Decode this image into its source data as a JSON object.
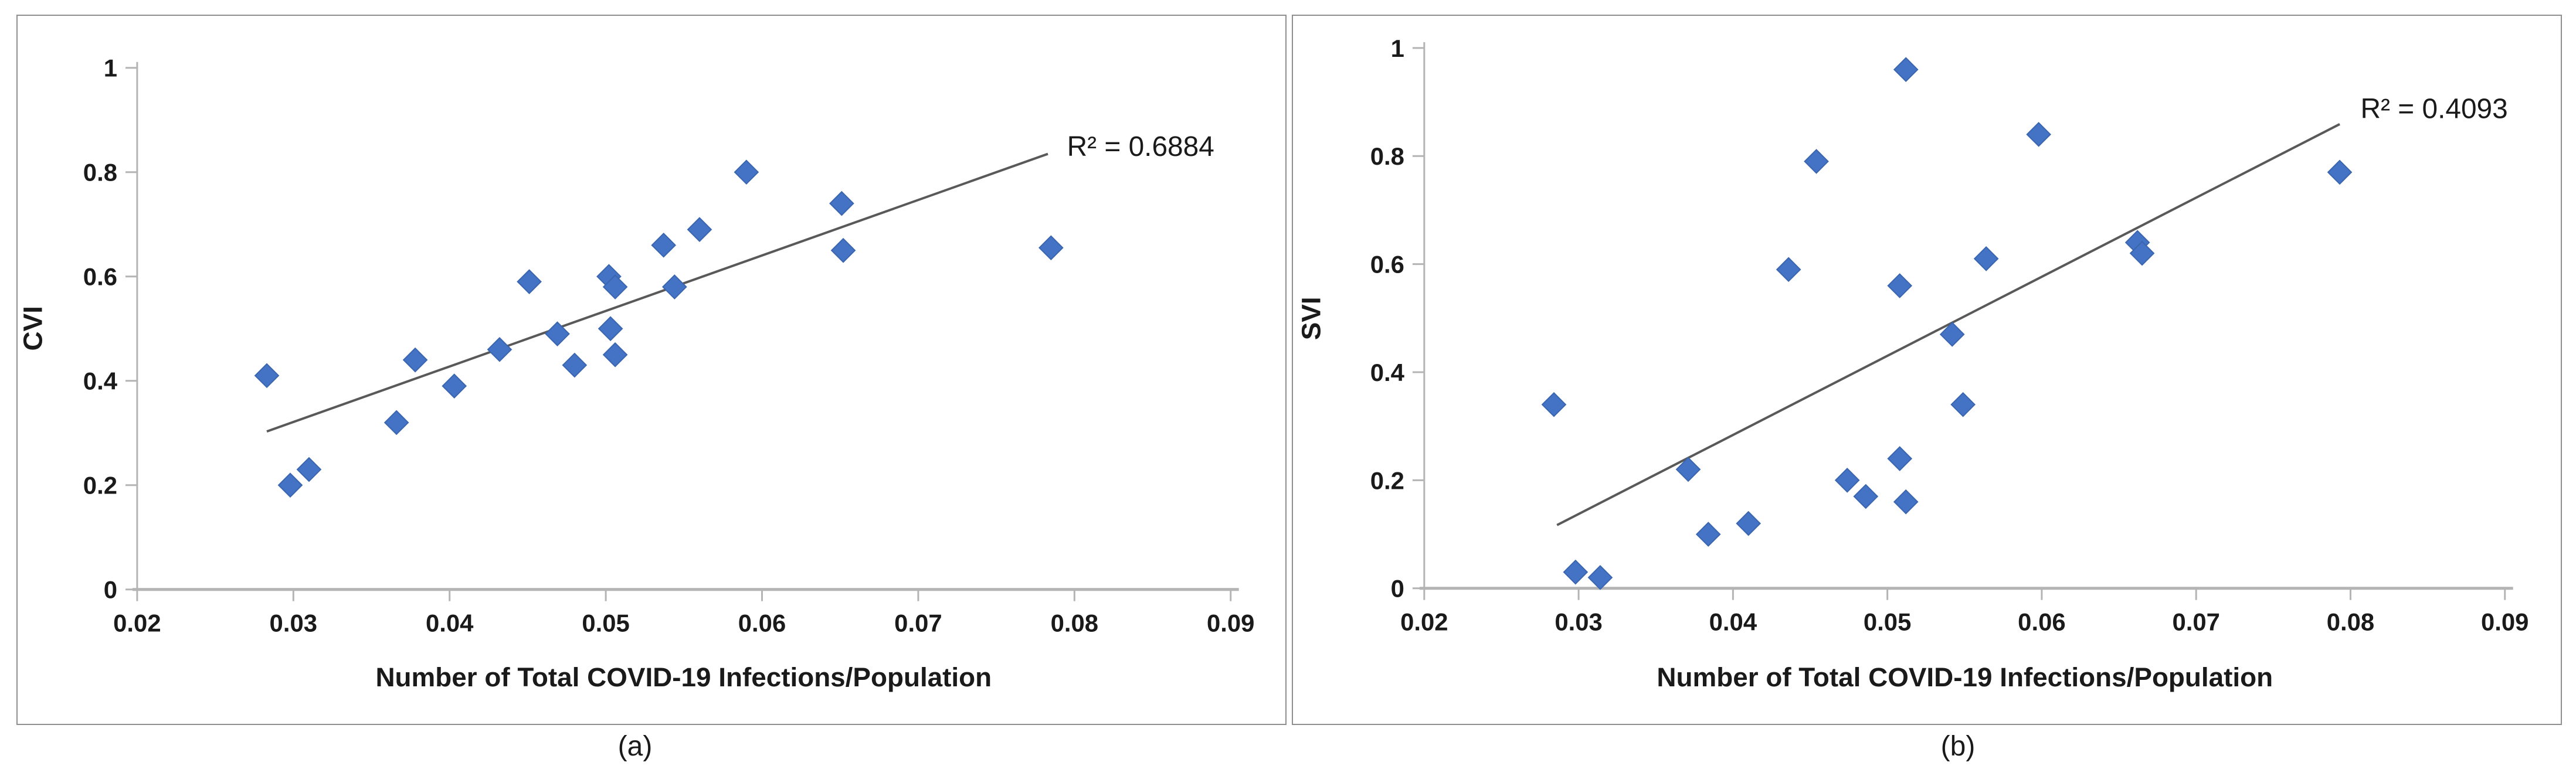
{
  "figure": {
    "captions": {
      "a": "(a)",
      "b": "(b)"
    }
  },
  "colors": {
    "marker": "#4472C4",
    "marker_edge": "#3a66b0",
    "trendline": "#595959",
    "axis": "#b4b4b4",
    "text": "#1a1a1a",
    "panel_border": "#8f8f8f"
  },
  "chart_data": [
    {
      "id": "a",
      "type": "scatter",
      "xlabel": "Number of Total COVID-19 Infections/Population",
      "ylabel": "CVI",
      "r2_label": "R² = 0.6884",
      "xlim": [
        0.02,
        0.09
      ],
      "ylim": [
        0,
        1
      ],
      "xticks": [
        0.02,
        0.03,
        0.04,
        0.05,
        0.06,
        0.07,
        0.08,
        0.09
      ],
      "xtick_labels": [
        "0.02",
        "0.03",
        "0.04",
        "0.05",
        "0.06",
        "0.07",
        "0.08",
        "0.09"
      ],
      "yticks": [
        0,
        0.2,
        0.4,
        0.6,
        0.8,
        1
      ],
      "ytick_labels": [
        "0",
        "0.2",
        "0.4",
        "0.6",
        "0.8",
        "1"
      ],
      "grid": false,
      "legend": "none",
      "marker": "diamond",
      "points": [
        [
          0.0283,
          0.41
        ],
        [
          0.0298,
          0.2
        ],
        [
          0.031,
          0.23
        ],
        [
          0.0366,
          0.32
        ],
        [
          0.0378,
          0.44
        ],
        [
          0.0403,
          0.39
        ],
        [
          0.0432,
          0.46
        ],
        [
          0.0451,
          0.59
        ],
        [
          0.0469,
          0.49
        ],
        [
          0.048,
          0.43
        ],
        [
          0.0502,
          0.6
        ],
        [
          0.0506,
          0.58
        ],
        [
          0.0503,
          0.5
        ],
        [
          0.0506,
          0.45
        ],
        [
          0.0544,
          0.58
        ],
        [
          0.0537,
          0.66
        ],
        [
          0.056,
          0.69
        ],
        [
          0.059,
          0.8
        ],
        [
          0.0651,
          0.74
        ],
        [
          0.0652,
          0.65
        ],
        [
          0.0785,
          0.655
        ]
      ],
      "trendline": {
        "x1": 0.0283,
        "y1": 0.303,
        "x2": 0.0783,
        "y2": 0.835
      }
    },
    {
      "id": "b",
      "type": "scatter",
      "xlabel": "Number of Total COVID-19 Infections/Population",
      "ylabel": "SVI",
      "r2_label": "R² = 0.4093",
      "xlim": [
        0.02,
        0.09
      ],
      "ylim": [
        0,
        1
      ],
      "xticks": [
        0.02,
        0.03,
        0.04,
        0.05,
        0.06,
        0.07,
        0.08,
        0.09
      ],
      "xtick_labels": [
        "0.02",
        "0.03",
        "0.04",
        "0.05",
        "0.06",
        "0.07",
        "0.08",
        "0.09"
      ],
      "yticks": [
        0,
        0.2,
        0.4,
        0.6,
        0.8,
        1
      ],
      "ytick_labels": [
        "0",
        "0.2",
        "0.4",
        "0.6",
        "0.8",
        "1"
      ],
      "grid": false,
      "legend": "none",
      "marker": "diamond",
      "points": [
        [
          0.0284,
          0.34
        ],
        [
          0.0298,
          0.03
        ],
        [
          0.0314,
          0.02
        ],
        [
          0.0371,
          0.22
        ],
        [
          0.0384,
          0.1
        ],
        [
          0.041,
          0.12
        ],
        [
          0.0436,
          0.59
        ],
        [
          0.0454,
          0.79
        ],
        [
          0.0474,
          0.2
        ],
        [
          0.0486,
          0.17
        ],
        [
          0.0508,
          0.24
        ],
        [
          0.0512,
          0.16
        ],
        [
          0.0512,
          0.96
        ],
        [
          0.0508,
          0.56
        ],
        [
          0.0542,
          0.47
        ],
        [
          0.0549,
          0.34
        ],
        [
          0.0564,
          0.61
        ],
        [
          0.0598,
          0.84
        ],
        [
          0.0662,
          0.64
        ],
        [
          0.0665,
          0.62
        ],
        [
          0.0793,
          0.77
        ]
      ],
      "trendline": {
        "x1": 0.0286,
        "y1": 0.117,
        "x2": 0.0793,
        "y2": 0.859
      }
    }
  ]
}
